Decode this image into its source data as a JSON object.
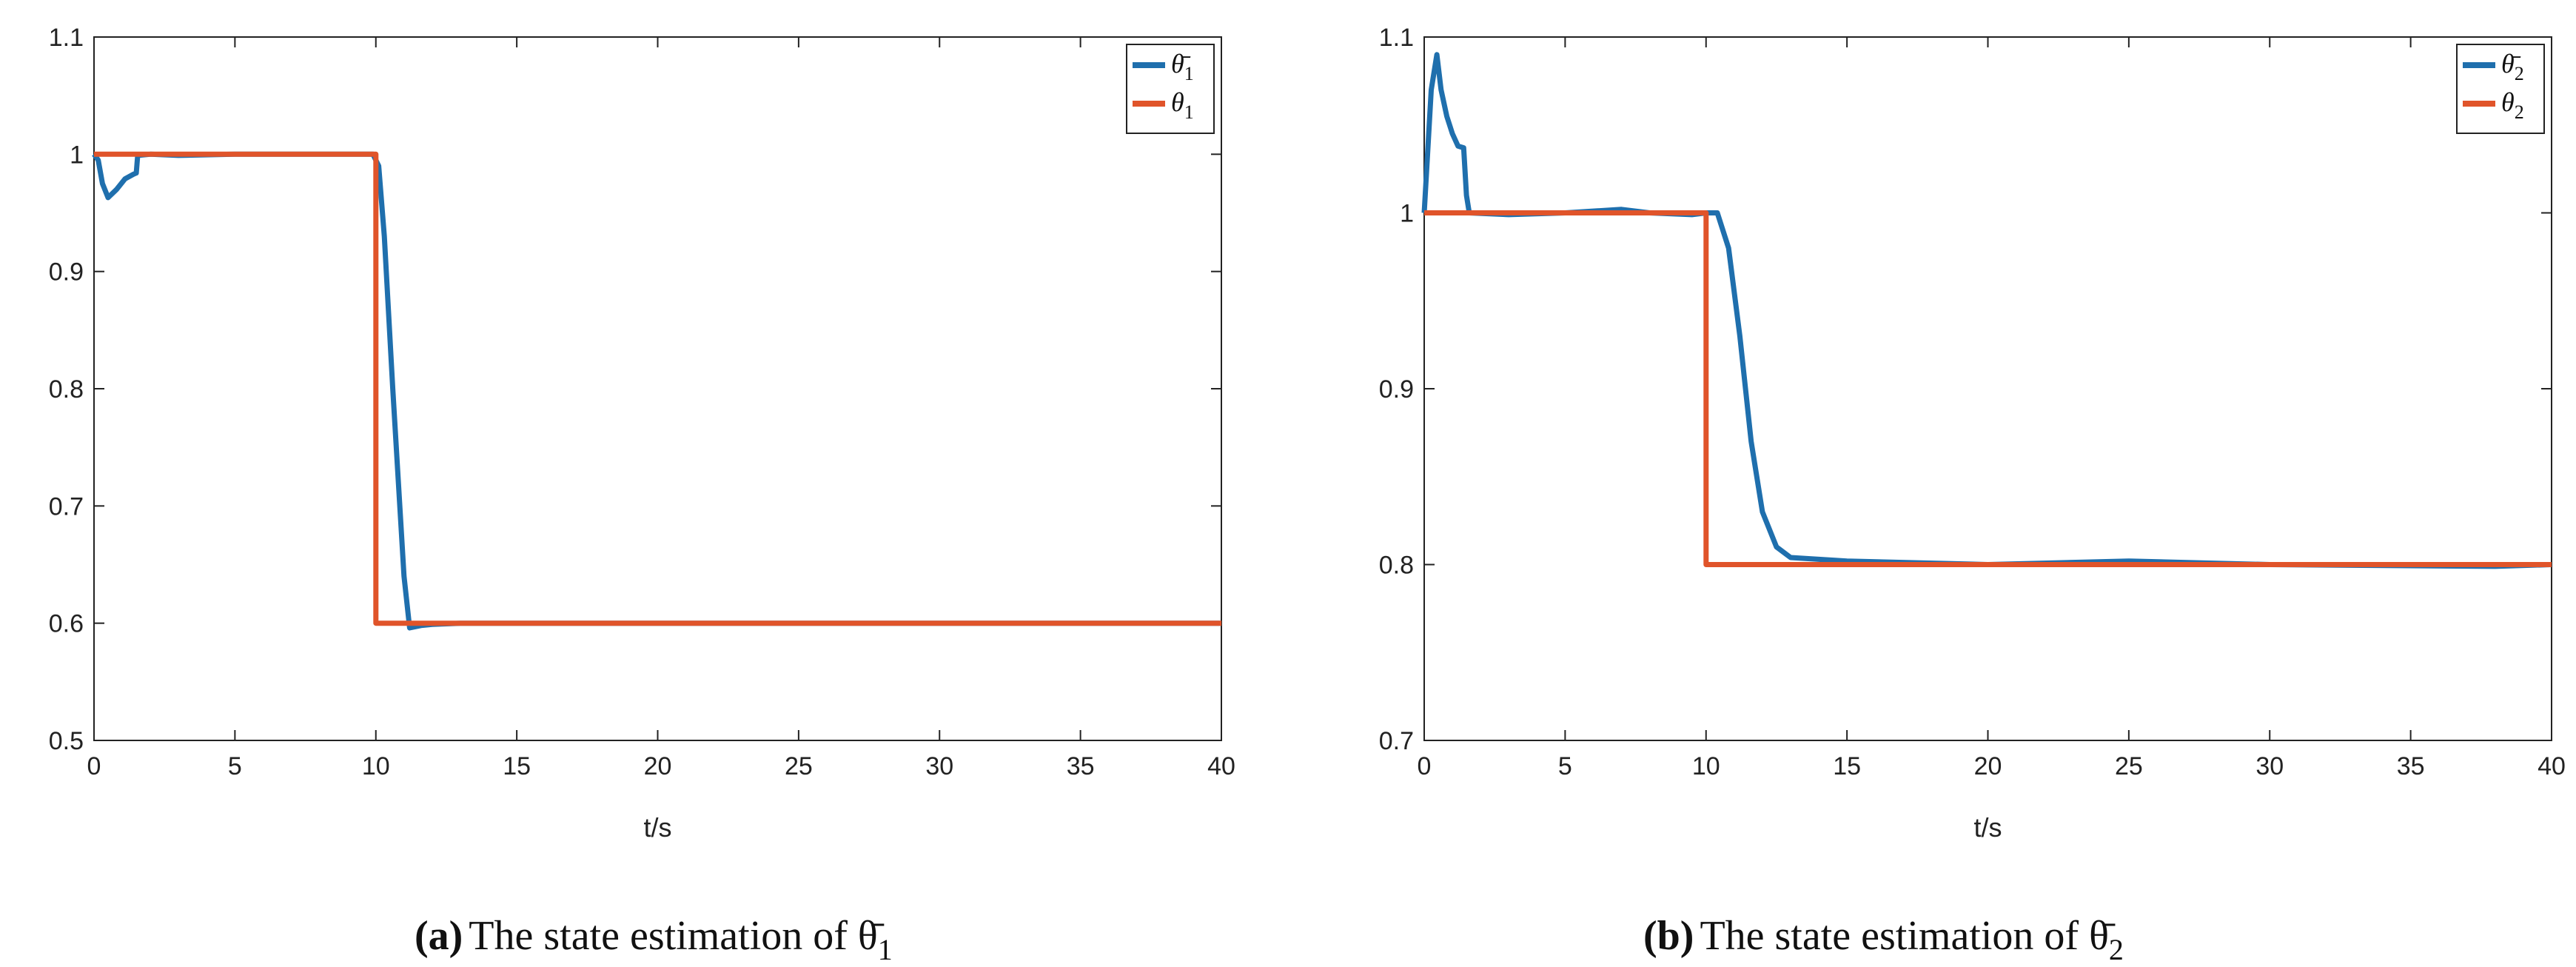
{
  "colors": {
    "estimate": "#1f6fad",
    "true_state": "#e0542a",
    "axis": "#222222"
  },
  "chart_data": [
    {
      "type": "line",
      "caption_tag": "(a)",
      "caption_text": "The state estimation of θ̄",
      "caption_sub": "1",
      "xlabel": "t/s",
      "ylabel": "",
      "xlim": [
        0,
        40
      ],
      "ylim": [
        0.5,
        1.1
      ],
      "xticks": [
        0,
        5,
        10,
        15,
        20,
        25,
        30,
        35,
        40
      ],
      "yticks": [
        0.5,
        0.6,
        0.7,
        0.8,
        0.9,
        1,
        1.1
      ],
      "legend_position": "top-right",
      "grid": false,
      "series": [
        {
          "name": "θ̄",
          "sub": "1",
          "color": "#1f6fad",
          "x": [
            0,
            0.15,
            0.3,
            0.5,
            0.8,
            1.1,
            1.4,
            1.5,
            1.55,
            2,
            3,
            5,
            7,
            9,
            9.9,
            10.1,
            10.3,
            10.6,
            11,
            11.2,
            11.6,
            12,
            13,
            40
          ],
          "y": [
            1.0,
            0.995,
            0.975,
            0.963,
            0.97,
            0.979,
            0.983,
            0.984,
            0.999,
            1.0,
            0.999,
            1.0,
            1.0,
            1.0,
            1.0,
            0.99,
            0.93,
            0.8,
            0.64,
            0.596,
            0.598,
            0.599,
            0.6,
            0.6
          ]
        },
        {
          "name": "θ",
          "sub": "1",
          "color": "#e0542a",
          "x": [
            0,
            10,
            10,
            40
          ],
          "y": [
            1.0,
            1.0,
            0.6,
            0.6
          ]
        }
      ]
    },
    {
      "type": "line",
      "caption_tag": "(b)",
      "caption_text": "The state estimation of θ̄",
      "caption_sub": "2",
      "xlabel": "t/s",
      "ylabel": "",
      "xlim": [
        0,
        40
      ],
      "ylim": [
        0.7,
        1.1
      ],
      "xticks": [
        0,
        5,
        10,
        15,
        20,
        25,
        30,
        35,
        40
      ],
      "yticks": [
        0.7,
        0.8,
        0.9,
        1,
        1.1
      ],
      "legend_position": "top-right",
      "grid": false,
      "series": [
        {
          "name": "θ̄",
          "sub": "2",
          "color": "#1f6fad",
          "x": [
            0,
            0.25,
            0.45,
            0.6,
            0.8,
            1.0,
            1.2,
            1.4,
            1.5,
            1.6,
            3,
            5,
            7,
            8,
            9.5,
            10,
            10.4,
            10.8,
            11.2,
            11.6,
            12,
            12.5,
            13,
            14,
            15,
            20,
            25,
            30,
            38,
            40
          ],
          "y": [
            1.0,
            1.07,
            1.09,
            1.07,
            1.055,
            1.045,
            1.038,
            1.037,
            1.01,
            1.0,
            0.999,
            1.0,
            1.002,
            1.0,
            0.999,
            1.0,
            1.0,
            0.98,
            0.93,
            0.87,
            0.83,
            0.81,
            0.804,
            0.803,
            0.802,
            0.8,
            0.802,
            0.8,
            0.799,
            0.8
          ]
        },
        {
          "name": "θ",
          "sub": "2",
          "color": "#e0542a",
          "x": [
            0,
            10,
            10,
            40
          ],
          "y": [
            1.0,
            1.0,
            0.8,
            0.8
          ]
        }
      ]
    }
  ]
}
